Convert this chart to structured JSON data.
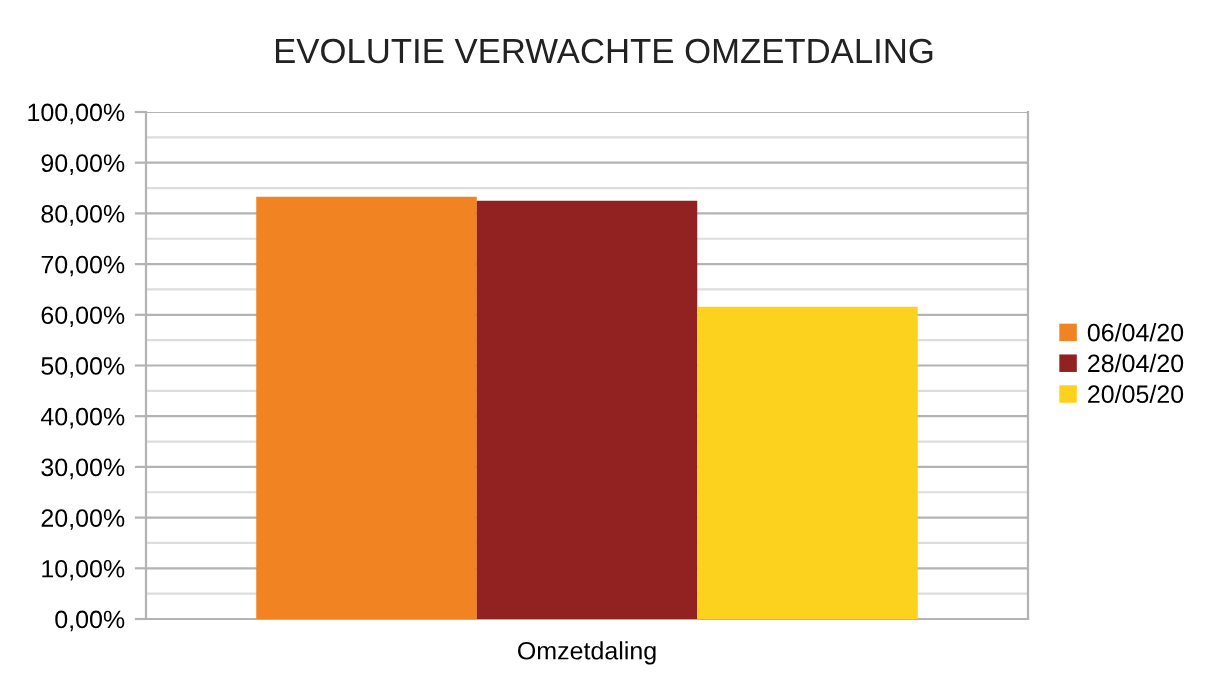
{
  "chart_data": {
    "type": "bar",
    "title": "EVOLUTIE VERWACHTE OMZETDALING",
    "categories": [
      "Omzetdaling"
    ],
    "series": [
      {
        "name": "06/04/20",
        "color": "#f28322",
        "values": [
          83.3
        ]
      },
      {
        "name": "28/04/20",
        "color": "#922121",
        "values": [
          82.5
        ]
      },
      {
        "name": "20/05/20",
        "color": "#fdd21f",
        "values": [
          61.6
        ]
      }
    ],
    "ylim": [
      0,
      100
    ],
    "yticks": [
      {
        "value": 0,
        "label": "0,00%"
      },
      {
        "value": 10,
        "label": "10,00%"
      },
      {
        "value": 20,
        "label": "20,00%"
      },
      {
        "value": 30,
        "label": "30,00%"
      },
      {
        "value": 40,
        "label": "40,00%"
      },
      {
        "value": 50,
        "label": "50,00%"
      },
      {
        "value": 60,
        "label": "60,00%"
      },
      {
        "value": 70,
        "label": "70,00%"
      },
      {
        "value": 80,
        "label": "80,00%"
      },
      {
        "value": 90,
        "label": "90,00%"
      },
      {
        "value": 100,
        "label": "100,00%"
      }
    ],
    "grid": "y",
    "legend": "right"
  }
}
